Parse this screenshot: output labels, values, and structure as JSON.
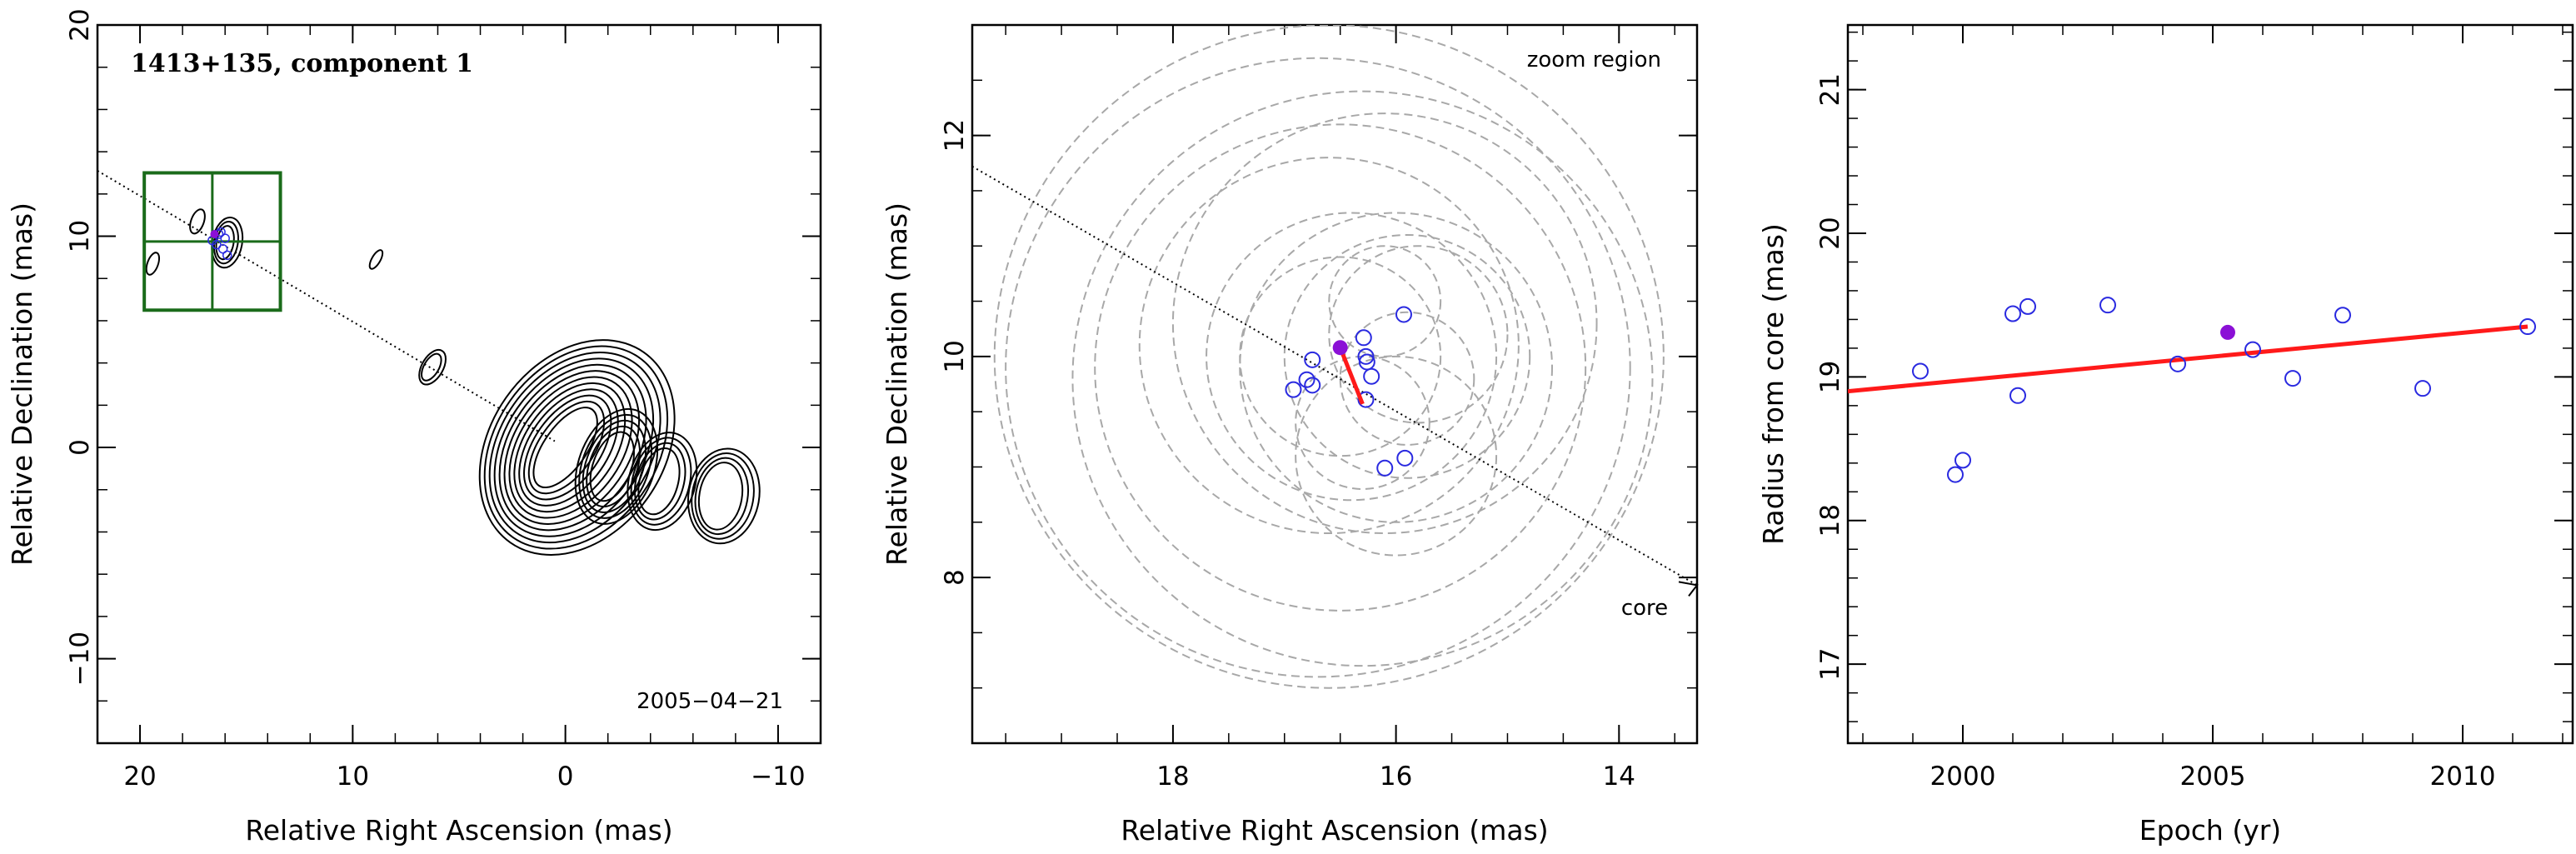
{
  "chart_data": [
    {
      "type": "contour",
      "title": "1413+135, component 1",
      "date_label": "2005−04−21",
      "xlabel": "Relative Right Ascension (mas)",
      "ylabel": "Relative Declination (mas)",
      "xlim": [
        22,
        -12
      ],
      "ylim": [
        -14,
        20
      ],
      "xticks": [
        "20",
        "10",
        "0",
        "−10"
      ],
      "yticks": [
        "−10",
        "0",
        "10",
        "20"
      ],
      "xtick_values": [
        20,
        10,
        0,
        -10
      ],
      "ytick_values": [
        -10,
        0,
        10,
        20
      ],
      "component_points": [
        {
          "x": 16.3,
          "y": 10.1
        },
        {
          "x": 16.0,
          "y": 9.9
        },
        {
          "x": 16.4,
          "y": 9.6
        },
        {
          "x": 16.1,
          "y": 9.4
        },
        {
          "x": 15.9,
          "y": 9.1
        },
        {
          "x": 16.6,
          "y": 9.8
        },
        {
          "x": 16.2,
          "y": 10.2
        }
      ],
      "highlight_point": {
        "x": 16.5,
        "y": 10.1
      },
      "zoom_box": {
        "x": [
          13.4,
          19.8
        ],
        "y": [
          6.5,
          13.0
        ]
      },
      "jet_direction_line": true
    },
    {
      "type": "scatter",
      "annotation_top": "zoom region",
      "annotation_core": "core",
      "xlabel": "Relative Right Ascension (mas)",
      "ylabel": "Relative Declination (mas)",
      "xlim": [
        19.8,
        13.3
      ],
      "ylim": [
        6.5,
        13.0
      ],
      "xticks": [
        "18",
        "16",
        "14"
      ],
      "yticks": [
        "8",
        "10",
        "12"
      ],
      "xtick_values": [
        18,
        16,
        14
      ],
      "ytick_values": [
        8,
        10,
        12
      ],
      "points": [
        {
          "x": 16.92,
          "y": 9.7
        },
        {
          "x": 16.8,
          "y": 9.79
        },
        {
          "x": 16.75,
          "y": 9.74
        },
        {
          "x": 16.75,
          "y": 9.97
        },
        {
          "x": 16.29,
          "y": 10.17
        },
        {
          "x": 16.27,
          "y": 10.0
        },
        {
          "x": 16.26,
          "y": 9.95
        },
        {
          "x": 16.22,
          "y": 9.82
        },
        {
          "x": 16.27,
          "y": 9.61
        },
        {
          "x": 15.93,
          "y": 10.38
        },
        {
          "x": 16.1,
          "y": 8.99
        },
        {
          "x": 15.92,
          "y": 9.08
        }
      ],
      "highlight_point": {
        "x": 16.5,
        "y": 10.08
      },
      "fit_line": {
        "x": [
          16.5,
          16.3
        ],
        "y": [
          10.08,
          9.57
        ]
      },
      "error_circles": [
        {
          "x": 16.5,
          "y": 10.0,
          "r": 0.9
        },
        {
          "x": 16.4,
          "y": 10.0,
          "r": 1.3
        },
        {
          "x": 16.6,
          "y": 10.1,
          "r": 1.7
        },
        {
          "x": 16.5,
          "y": 9.9,
          "r": 2.2
        },
        {
          "x": 16.3,
          "y": 9.8,
          "r": 2.6
        },
        {
          "x": 16.7,
          "y": 9.9,
          "r": 2.8
        },
        {
          "x": 16.6,
          "y": 10.0,
          "r": 3.0
        },
        {
          "x": 15.9,
          "y": 10.0,
          "r": 1.1
        },
        {
          "x": 15.8,
          "y": 10.2,
          "r": 0.8
        },
        {
          "x": 16.0,
          "y": 9.9,
          "r": 1.4
        },
        {
          "x": 16.1,
          "y": 10.3,
          "r": 1.9
        },
        {
          "x": 16.3,
          "y": 9.4,
          "r": 0.6
        },
        {
          "x": 16.1,
          "y": 10.5,
          "r": 0.5
        },
        {
          "x": 16.0,
          "y": 9.1,
          "r": 0.9
        },
        {
          "x": 15.9,
          "y": 9.8,
          "r": 0.6
        }
      ],
      "direction_line": {
        "x": [
          19.8,
          13.3
        ],
        "y": [
          11.72,
          7.93
        ]
      }
    },
    {
      "type": "scatter",
      "xlabel": "Epoch (yr)",
      "ylabel": "Radius from core (mas)",
      "xlim": [
        1997.7,
        2012.2
      ],
      "ylim": [
        16.45,
        21.45
      ],
      "xticks": [
        "2000",
        "2005",
        "2010"
      ],
      "yticks": [
        "17",
        "18",
        "19",
        "20",
        "21"
      ],
      "xtick_values": [
        2000,
        2005,
        2010
      ],
      "ytick_values": [
        17,
        18,
        19,
        20,
        21
      ],
      "points": [
        {
          "x": 1999.15,
          "y": 19.04
        },
        {
          "x": 1999.85,
          "y": 18.32
        },
        {
          "x": 2000.0,
          "y": 18.42
        },
        {
          "x": 2001.0,
          "y": 19.44
        },
        {
          "x": 2001.1,
          "y": 18.87
        },
        {
          "x": 2001.3,
          "y": 19.49
        },
        {
          "x": 2002.9,
          "y": 19.5
        },
        {
          "x": 2004.3,
          "y": 19.09
        },
        {
          "x": 2005.8,
          "y": 19.19
        },
        {
          "x": 2006.6,
          "y": 18.99
        },
        {
          "x": 2007.6,
          "y": 19.43
        },
        {
          "x": 2009.2,
          "y": 18.92
        },
        {
          "x": 2011.3,
          "y": 19.35
        }
      ],
      "highlight_point": {
        "x": 2005.3,
        "y": 19.31
      },
      "fit_line": {
        "x": [
          1997.7,
          2011.3
        ],
        "y": [
          18.9,
          19.35
        ]
      }
    }
  ],
  "colors": {
    "points": "#2a2ae0",
    "highlight": "#8b10d6",
    "fit": "#ff1a1a",
    "zoom_box": "#1a6b1a",
    "circles": "#a8a8a8",
    "contours": "#000000"
  }
}
